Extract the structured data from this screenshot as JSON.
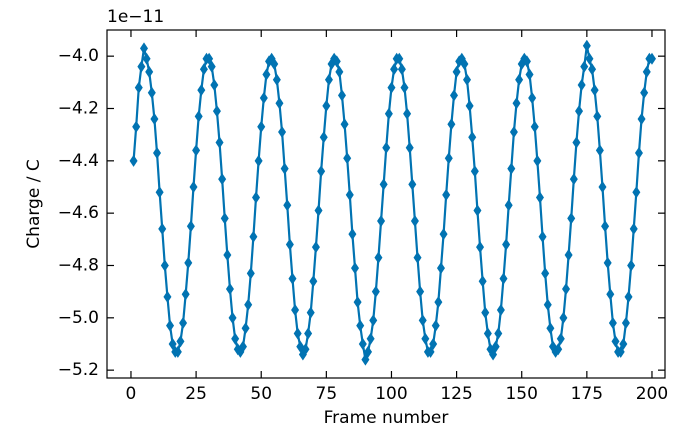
{
  "chart_data": {
    "type": "line",
    "xlabel": "Frame number",
    "ylabel": "Charge / C",
    "y_offset_label": "1e−11",
    "color": "#0173b2",
    "marker": "diamond",
    "x": [
      1,
      2,
      3,
      4,
      5,
      6,
      7,
      8,
      9,
      10,
      11,
      12,
      13,
      14,
      15,
      16,
      17,
      18,
      19,
      20,
      21,
      22,
      23,
      24,
      25,
      26,
      27,
      28,
      29,
      30,
      31,
      32,
      33,
      34,
      35,
      36,
      37,
      38,
      39,
      40,
      41,
      42,
      43,
      44,
      45,
      46,
      47,
      48,
      49,
      50,
      51,
      52,
      53,
      54,
      55,
      56,
      57,
      58,
      59,
      60,
      61,
      62,
      63,
      64,
      65,
      66,
      67,
      68,
      69,
      70,
      71,
      72,
      73,
      74,
      75,
      76,
      77,
      78,
      79,
      80,
      81,
      82,
      83,
      84,
      85,
      86,
      87,
      88,
      89,
      90,
      91,
      92,
      93,
      94,
      95,
      96,
      97,
      98,
      99,
      100,
      101,
      102,
      103,
      104,
      105,
      106,
      107,
      108,
      109,
      110,
      111,
      112,
      113,
      114,
      115,
      116,
      117,
      118,
      119,
      120,
      121,
      122,
      123,
      124,
      125,
      126,
      127,
      128,
      129,
      130,
      131,
      132,
      133,
      134,
      135,
      136,
      137,
      138,
      139,
      140,
      141,
      142,
      143,
      144,
      145,
      146,
      147,
      148,
      149,
      150,
      151,
      152,
      153,
      154,
      155,
      156,
      157,
      158,
      159,
      160,
      161,
      162,
      163,
      164,
      165,
      166,
      167,
      168,
      169,
      170,
      171,
      172,
      173,
      174,
      175,
      176,
      177,
      178,
      179,
      180,
      181,
      182,
      183,
      184,
      185,
      186,
      187,
      188,
      189,
      190,
      191,
      192,
      193,
      194,
      195,
      196,
      197,
      198,
      199,
      200
    ],
    "values": [
      -4.4,
      -4.27,
      -4.12,
      -4.04,
      -3.97,
      -4.01,
      -4.06,
      -4.14,
      -4.24,
      -4.37,
      -4.52,
      -4.66,
      -4.8,
      -4.92,
      -5.03,
      -5.1,
      -5.13,
      -5.13,
      -5.09,
      -5.02,
      -4.91,
      -4.79,
      -4.65,
      -4.5,
      -4.36,
      -4.23,
      -4.13,
      -4.05,
      -4.01,
      -4.01,
      -4.04,
      -4.11,
      -4.21,
      -4.33,
      -4.47,
      -4.62,
      -4.76,
      -4.89,
      -5.0,
      -5.08,
      -5.12,
      -5.13,
      -5.11,
      -5.04,
      -4.95,
      -4.83,
      -4.69,
      -4.54,
      -4.4,
      -4.27,
      -4.16,
      -4.07,
      -4.02,
      -4.01,
      -4.03,
      -4.09,
      -4.18,
      -4.29,
      -4.43,
      -4.57,
      -4.72,
      -4.85,
      -4.97,
      -5.06,
      -5.11,
      -5.14,
      -5.12,
      -5.06,
      -4.98,
      -4.86,
      -4.73,
      -4.59,
      -4.44,
      -4.31,
      -4.19,
      -4.09,
      -4.03,
      -4.01,
      -4.02,
      -4.06,
      -4.15,
      -4.26,
      -4.39,
      -4.53,
      -4.68,
      -4.81,
      -4.94,
      -5.03,
      -5.1,
      -5.16,
      -5.13,
      -5.08,
      -5.01,
      -4.9,
      -4.77,
      -4.63,
      -4.49,
      -4.35,
      -4.22,
      -4.12,
      -4.05,
      -4.01,
      -4.01,
      -4.05,
      -4.12,
      -4.22,
      -4.35,
      -4.49,
      -4.63,
      -4.77,
      -4.9,
      -5.01,
      -5.08,
      -5.13,
      -5.13,
      -5.1,
      -5.03,
      -4.94,
      -4.81,
      -4.68,
      -4.53,
      -4.39,
      -4.26,
      -4.15,
      -4.06,
      -4.02,
      -4.01,
      -4.03,
      -4.09,
      -4.19,
      -4.31,
      -4.44,
      -4.59,
      -4.73,
      -4.86,
      -4.98,
      -5.06,
      -5.12,
      -5.14,
      -5.11,
      -5.06,
      -4.97,
      -4.85,
      -4.72,
      -4.57,
      -4.43,
      -4.29,
      -4.18,
      -4.09,
      -4.03,
      -4.01,
      -4.02,
      -4.07,
      -4.16,
      -4.27,
      -4.4,
      -4.54,
      -4.69,
      -4.83,
      -4.95,
      -5.04,
      -5.11,
      -5.13,
      -5.12,
      -5.08,
      -5.0,
      -4.89,
      -4.76,
      -4.62,
      -4.47,
      -4.33,
      -4.21,
      -4.11,
      -4.04,
      -3.96,
      -4.01,
      -4.05,
      -4.13,
      -4.23,
      -4.36,
      -4.5,
      -4.65,
      -4.79,
      -4.91,
      -5.02,
      -5.09,
      -5.13,
      -5.13,
      -5.1,
      -5.02,
      -4.92,
      -4.8,
      -4.66,
      -4.52,
      -4.37,
      -4.24,
      -4.14,
      -4.06,
      -4.01,
      -4.01
    ],
    "xlim": [
      -9.2,
      205
    ],
    "ylim": [
      -5.23,
      -3.9
    ],
    "xticks": [
      0,
      25,
      50,
      75,
      100,
      125,
      150,
      175,
      200
    ],
    "yticks": [
      {
        "value": -4.0,
        "label": "−4.0"
      },
      {
        "value": -4.2,
        "label": "−4.2"
      },
      {
        "value": -4.4,
        "label": "−4.4"
      },
      {
        "value": -4.6,
        "label": "−4.6"
      },
      {
        "value": -4.8,
        "label": "−4.8"
      },
      {
        "value": -5.0,
        "label": "−5.0"
      },
      {
        "value": -5.2,
        "label": "−5.2"
      }
    ]
  }
}
